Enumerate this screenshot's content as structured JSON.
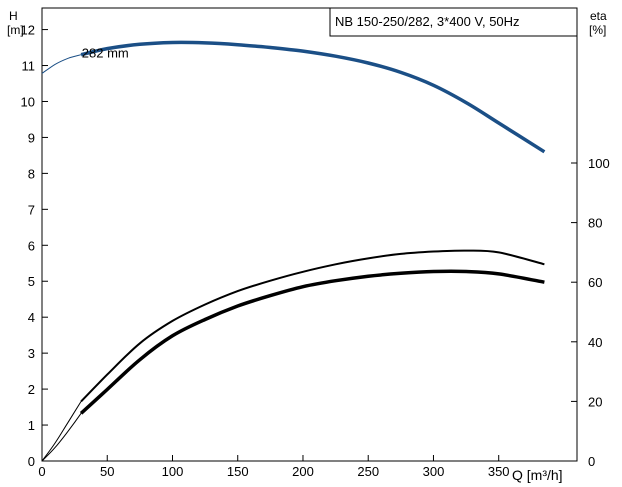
{
  "chart_data": {
    "type": "line",
    "title": "NB 150-250/282, 3*400 V, 50Hz",
    "xlabel": "Q [m³/h]",
    "ylabel_left_name": "H",
    "ylabel_left_unit": "[m]",
    "ylabel_right_name": "eta",
    "ylabel_right_unit": "[%]",
    "xlim": [
      0,
      410
    ],
    "ylim_left": [
      0,
      12.6
    ],
    "ylim_right": [
      0,
      100
    ],
    "x_ticks": [
      0,
      50,
      100,
      150,
      200,
      250,
      300,
      350
    ],
    "y_left_ticks": [
      0,
      1,
      2,
      3,
      4,
      5,
      6,
      7,
      8,
      9,
      10,
      11,
      12
    ],
    "y_right_ticks": [
      0,
      20,
      40,
      60,
      80,
      100
    ],
    "grid": false,
    "annotations": [
      {
        "text": "282 mm",
        "x": 55,
        "y": 11.3
      }
    ],
    "series": [
      {
        "name": "282 mm",
        "axis": "left",
        "color": "#1b4f86",
        "width": 3.5,
        "x": [
          30,
          50,
          75,
          100,
          125,
          150,
          175,
          200,
          225,
          250,
          275,
          300,
          325,
          350,
          385
        ],
        "y": [
          11.3,
          11.47,
          11.59,
          11.64,
          11.63,
          11.58,
          11.5,
          11.4,
          11.26,
          11.07,
          10.81,
          10.45,
          9.97,
          9.4,
          8.6
        ]
      },
      {
        "axis": "left",
        "color": "#1b4f86",
        "width": 1,
        "x": [
          0,
          10,
          20,
          30
        ],
        "y": [
          10.78,
          11.03,
          11.2,
          11.3
        ]
      },
      {
        "axis": "right",
        "color": "#000000",
        "width": 2,
        "x": [
          30,
          50,
          75,
          100,
          125,
          150,
          175,
          200,
          225,
          250,
          275,
          300,
          325,
          350,
          385
        ],
        "y": [
          20,
          29,
          39.5,
          47,
          52.5,
          57,
          60.5,
          63.5,
          66,
          68,
          69.5,
          70.3,
          70.6,
          70,
          66
        ]
      },
      {
        "axis": "right",
        "color": "#000000",
        "width": 3.5,
        "x": [
          30,
          50,
          75,
          100,
          125,
          150,
          175,
          200,
          225,
          250,
          275,
          300,
          325,
          350,
          385
        ],
        "y": [
          16,
          24,
          34,
          42,
          47.5,
          52,
          55.5,
          58.5,
          60.5,
          62,
          63,
          63.6,
          63.6,
          62.8,
          60
        ]
      },
      {
        "axis": "right",
        "color": "#000000",
        "width": 1,
        "x": [
          0,
          10,
          20,
          30
        ],
        "y": [
          0,
          6,
          13,
          20
        ]
      },
      {
        "axis": "right",
        "color": "#000000",
        "width": 1,
        "x": [
          0,
          10,
          20,
          30
        ],
        "y": [
          0,
          4.5,
          10,
          16
        ]
      }
    ]
  }
}
